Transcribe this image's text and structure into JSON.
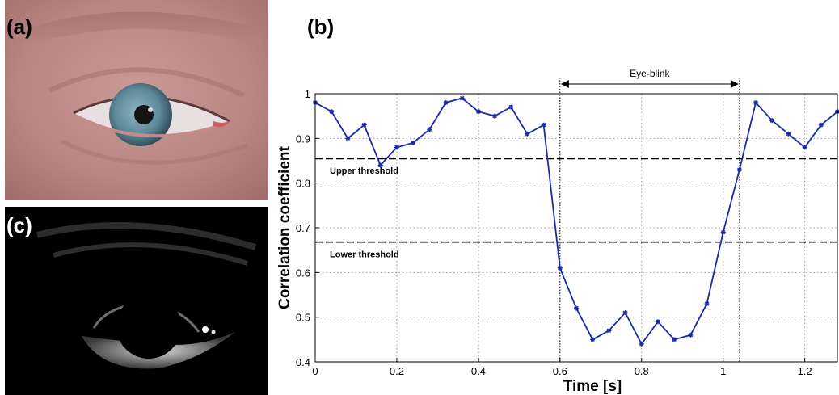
{
  "panels": {
    "a": {
      "label": "(a)"
    },
    "b": {
      "label": "(b)"
    },
    "c": {
      "label": "(c)"
    }
  },
  "colors": {
    "series": "#1c2aa8",
    "threshold": "#000000",
    "grid": "#9a9a9a",
    "label_light": "#ffffff",
    "label_dark": "#000000"
  },
  "chart_data": {
    "type": "line",
    "title": "",
    "xlabel": "Time [s]",
    "ylabel": "Correlation coefficient",
    "xlim": [
      0,
      1.28
    ],
    "ylim": [
      0.4,
      1.0
    ],
    "xticks": [
      0,
      0.2,
      0.4,
      0.6,
      0.8,
      1,
      1.2
    ],
    "xtick_labels": [
      "0",
      "0.2",
      "0.4",
      "0.6",
      "0.8",
      "1",
      "1.2"
    ],
    "yticks": [
      0.4,
      0.5,
      0.6,
      0.7,
      0.8,
      0.9,
      1
    ],
    "ytick_labels": [
      "0.4",
      "0.5",
      "0.6",
      "0.7",
      "0.8",
      "0.9",
      "1"
    ],
    "grid": true,
    "series": [
      {
        "x": [
          0,
          0.04,
          0.08,
          0.12,
          0.16,
          0.2,
          0.24,
          0.28,
          0.32,
          0.36,
          0.4,
          0.44,
          0.48,
          0.52,
          0.56,
          0.6,
          0.64,
          0.68,
          0.72,
          0.76,
          0.8,
          0.84,
          0.88,
          0.92,
          0.96,
          1.0,
          1.04,
          1.08,
          1.12,
          1.16,
          1.2,
          1.24,
          1.28
        ],
        "y": [
          0.98,
          0.96,
          0.9,
          0.93,
          0.84,
          0.88,
          0.89,
          0.92,
          0.98,
          0.99,
          0.96,
          0.95,
          0.97,
          0.91,
          0.93,
          0.61,
          0.52,
          0.45,
          0.47,
          0.51,
          0.44,
          0.49,
          0.45,
          0.46,
          0.53,
          0.69,
          0.83,
          0.98,
          0.94,
          0.91,
          0.88,
          0.93,
          0.96
        ]
      }
    ],
    "thresholds": [
      {
        "label": "Upper threshold",
        "y": 0.855
      },
      {
        "label": "Lower threshold",
        "y": 0.668
      }
    ],
    "annotation": {
      "label": "Eye-blink",
      "x_start": 0.6,
      "x_end": 1.04
    }
  }
}
